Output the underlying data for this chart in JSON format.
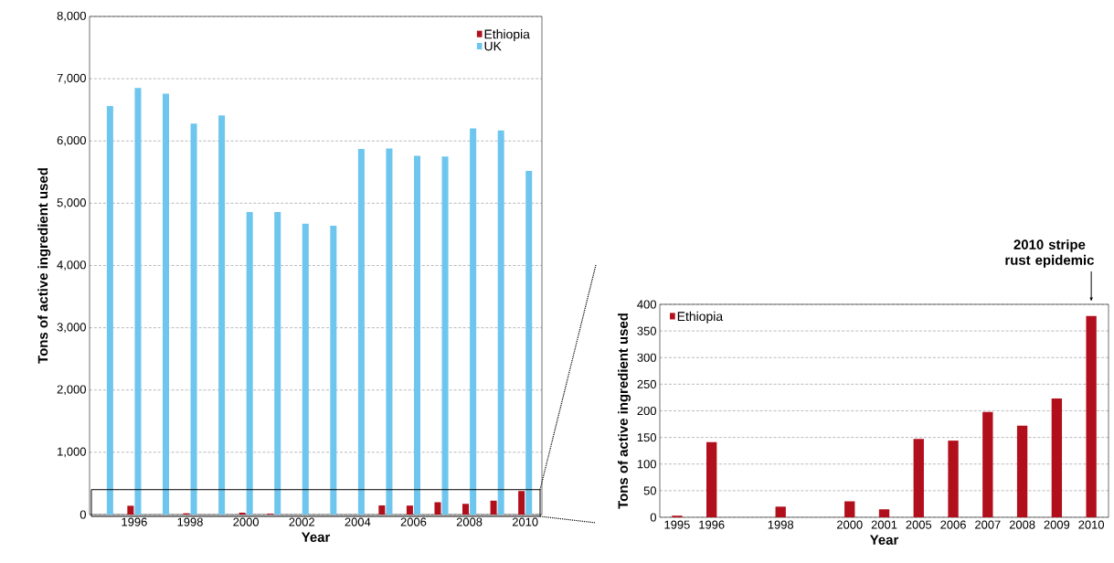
{
  "chart_data": [
    {
      "type": "bar",
      "xlabel": "Year",
      "ylabel": "Tons of active ingredient used",
      "x": [
        1995,
        1996,
        1997,
        1998,
        1999,
        2000,
        2001,
        2002,
        2003,
        2004,
        2005,
        2006,
        2007,
        2008,
        2009,
        2010
      ],
      "series": [
        {
          "name": "Ethiopia",
          "color": "#b10f1b",
          "values": [
            null,
            141,
            null,
            20,
            null,
            30,
            15,
            null,
            null,
            null,
            147,
            144,
            198,
            172,
            223,
            378
          ]
        },
        {
          "name": "UK",
          "color": "#6ec6ee",
          "values": [
            6560,
            6850,
            6760,
            6280,
            6410,
            4860,
            4860,
            4670,
            4640,
            5870,
            5880,
            5760,
            5750,
            6200,
            6170,
            5520
          ]
        }
      ],
      "xlim": [
        1994.4,
        2010.6
      ],
      "xticks": [
        1996,
        1998,
        2000,
        2002,
        2004,
        2006,
        2008,
        2010
      ],
      "ylim": [
        0,
        8000
      ],
      "yticks": [
        {
          "value": 0,
          "label": "0"
        },
        {
          "value": 1000,
          "label": "1,000"
        },
        {
          "value": 2000,
          "label": "2,000"
        },
        {
          "value": 3000,
          "label": "3,000"
        },
        {
          "value": 4000,
          "label": "4,000"
        },
        {
          "value": 5000,
          "label": "5,000"
        },
        {
          "value": 6000,
          "label": "6,000"
        },
        {
          "value": 7000,
          "label": "7,000"
        },
        {
          "value": 8000,
          "label": "8,000"
        }
      ],
      "grid": "y",
      "legend": "top right"
    },
    {
      "type": "bar",
      "xlabel": "Year",
      "ylabel": "Tons of active ingredient used",
      "categories": [
        "1995",
        "1996",
        null,
        "1998",
        null,
        "2000",
        "2001",
        "2005",
        "2006",
        "2007",
        "2008",
        "2009",
        "2010"
      ],
      "series": [
        {
          "name": "Ethiopia",
          "color": "#b10f1b",
          "values": [
            3,
            141,
            null,
            20,
            null,
            30,
            15,
            147,
            144,
            198,
            172,
            223,
            378
          ]
        }
      ],
      "ylim": [
        0,
        400
      ],
      "yticks": [
        0,
        50,
        100,
        150,
        200,
        250,
        300,
        350,
        400
      ],
      "grid": "y",
      "legend": "top left",
      "annotations": [
        "2010 stripe rust epidemic"
      ]
    }
  ]
}
